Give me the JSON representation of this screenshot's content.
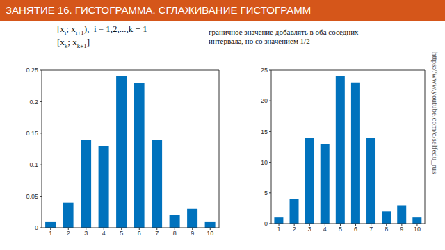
{
  "slide": {
    "title": "ЗАНЯТИЕ 16. ГИСТОГРАММА. СГЛАЖИВАНИЕ ГИСТОГРАММ",
    "formulas": [
      [
        {
          "text": "[x",
          "sub": false
        },
        {
          "text": "i",
          "sub": true
        },
        {
          "text": "; x",
          "sub": false
        },
        {
          "text": "i+1",
          "sub": true
        },
        {
          "text": "),  i = 1,2,...,k − 1",
          "sub": false
        }
      ],
      [
        {
          "text": "[x",
          "sub": false
        },
        {
          "text": "k",
          "sub": true
        },
        {
          "text": "; x",
          "sub": false
        },
        {
          "text": "k+1",
          "sub": true
        },
        {
          "text": "]",
          "sub": false
        }
      ]
    ],
    "note": "граничное значение добавлять в оба соседних интервала, но со значением 1/2",
    "url": "https://www.youtube.com/c/selfedu_rus"
  },
  "chart_data": [
    {
      "type": "bar",
      "categories": [
        "1",
        "2",
        "3",
        "4",
        "5",
        "6",
        "7",
        "8",
        "9",
        "10"
      ],
      "values": [
        0.01,
        0.04,
        0.14,
        0.13,
        0.24,
        0.23,
        0.14,
        0.02,
        0.03,
        0.01
      ],
      "color": "#0072bd",
      "ylim": [
        0,
        0.25
      ],
      "yticks": [
        0,
        0.05,
        0.1,
        0.15,
        0.2,
        0.25
      ],
      "grid": false
    },
    {
      "type": "bar",
      "categories": [
        "1",
        "2",
        "3",
        "4",
        "5",
        "6",
        "7",
        "8",
        "9",
        "10"
      ],
      "values": [
        1,
        4,
        14,
        13,
        24,
        23,
        14,
        2,
        3,
        1
      ],
      "color": "#0072bd",
      "ylim": [
        0,
        25
      ],
      "yticks": [
        0,
        5,
        10,
        15,
        20,
        25
      ],
      "grid": false
    }
  ]
}
